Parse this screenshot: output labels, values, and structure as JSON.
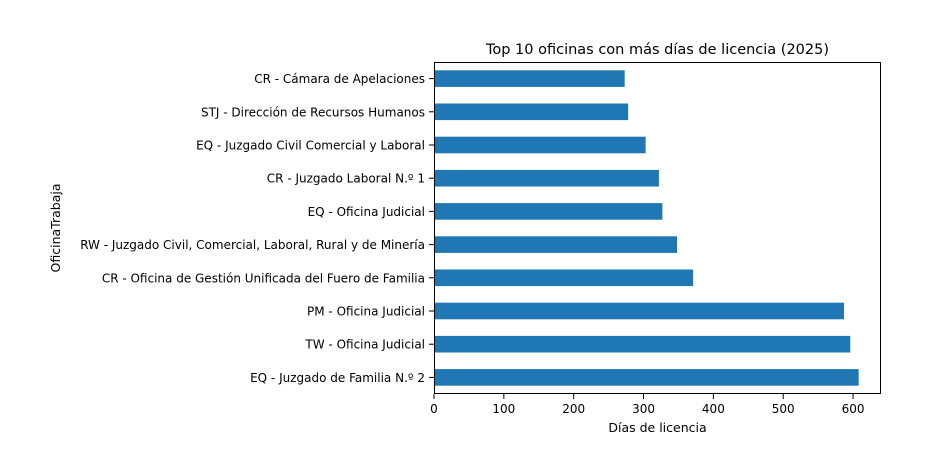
{
  "chart_data": {
    "type": "bar",
    "orientation": "horizontal",
    "title": "Top 10 oficinas con más días de licencia (2025)",
    "xlabel": "Días de licencia",
    "ylabel": "OficinaTrabaja",
    "xlim": [
      0,
      640
    ],
    "xticks": [
      "0",
      "100",
      "200",
      "300",
      "400",
      "500",
      "600"
    ],
    "grid": false,
    "bar_color": "#1f77b4",
    "categories": [
      "CR - Cámara de Apelaciones",
      "STJ - Dirección de Recursos Humanos",
      "EQ - Juzgado Civil Comercial y Laboral",
      "CR - Juzgado Laboral N.º 1",
      "EQ - Oficina Judicial",
      "RW - Juzgado Civil, Comercial, Laboral, Rural y de Minería",
      "CR - Oficina de Gestión Unificada del Fuero de Familia",
      "PM - Oficina Judicial",
      "TW - Oficina Judicial",
      "EQ - Juzgado de Familia N.º 2"
    ],
    "values": [
      273,
      278,
      303,
      322,
      327,
      348,
      371,
      587,
      596,
      608
    ]
  }
}
